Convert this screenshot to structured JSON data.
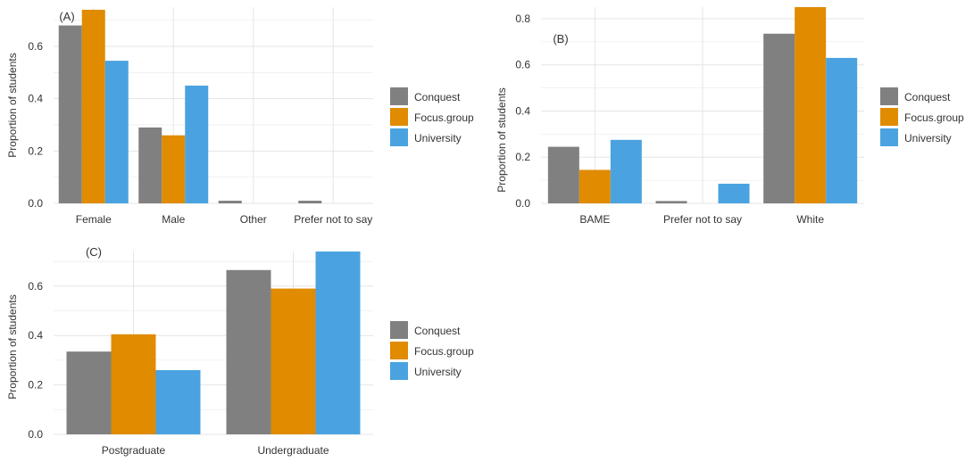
{
  "figure": {
    "colors": {
      "Conquest": "#808080",
      "Focus.group": "#E08B00",
      "University": "#4AA3E0",
      "grid": "#E5E5E5",
      "text": "#333333"
    }
  },
  "chart_data": [
    {
      "panel_label": "(A)",
      "type": "bar",
      "ylabel": "Proportion of students",
      "xlabel": "",
      "categories": [
        "Female",
        "Male",
        "Other",
        "Prefer not to say"
      ],
      "series": [
        {
          "name": "Conquest",
          "values": [
            0.68,
            0.29,
            0.01,
            0.01
          ]
        },
        {
          "name": "Focus.group",
          "values": [
            0.74,
            0.26,
            0.0,
            0.0
          ]
        },
        {
          "name": "University",
          "values": [
            0.545,
            0.45,
            0.0,
            0.0
          ]
        }
      ],
      "ylim": [
        0,
        0.75
      ],
      "yticks": [
        "0.0",
        "0.2",
        "0.4",
        "0.6"
      ],
      "grid": true,
      "legend": "right"
    },
    {
      "panel_label": "(B)",
      "type": "bar",
      "ylabel": "Proportion of students",
      "xlabel": "",
      "categories": [
        "BAME",
        "Prefer not to say",
        "White"
      ],
      "series": [
        {
          "name": "Conquest",
          "values": [
            0.245,
            0.01,
            0.735
          ]
        },
        {
          "name": "Focus.group",
          "values": [
            0.145,
            0.0,
            0.85
          ]
        },
        {
          "name": "University",
          "values": [
            0.275,
            0.085,
            0.63
          ]
        }
      ],
      "ylim": [
        0,
        0.85
      ],
      "yticks": [
        "0.0",
        "0.2",
        "0.4",
        "0.6",
        "0.8"
      ],
      "grid": true,
      "legend": "right"
    },
    {
      "panel_label": "(C)",
      "type": "bar",
      "ylabel": "Proportion of students",
      "xlabel": "",
      "categories": [
        "Postgraduate",
        "Undergraduate"
      ],
      "series": [
        {
          "name": "Conquest",
          "values": [
            0.335,
            0.665
          ]
        },
        {
          "name": "Focus.group",
          "values": [
            0.405,
            0.59
          ]
        },
        {
          "name": "University",
          "values": [
            0.26,
            0.74
          ]
        }
      ],
      "ylim": [
        0,
        0.74
      ],
      "yticks": [
        "0.0",
        "0.2",
        "0.4",
        "0.6"
      ],
      "grid": true,
      "legend": "right"
    }
  ]
}
